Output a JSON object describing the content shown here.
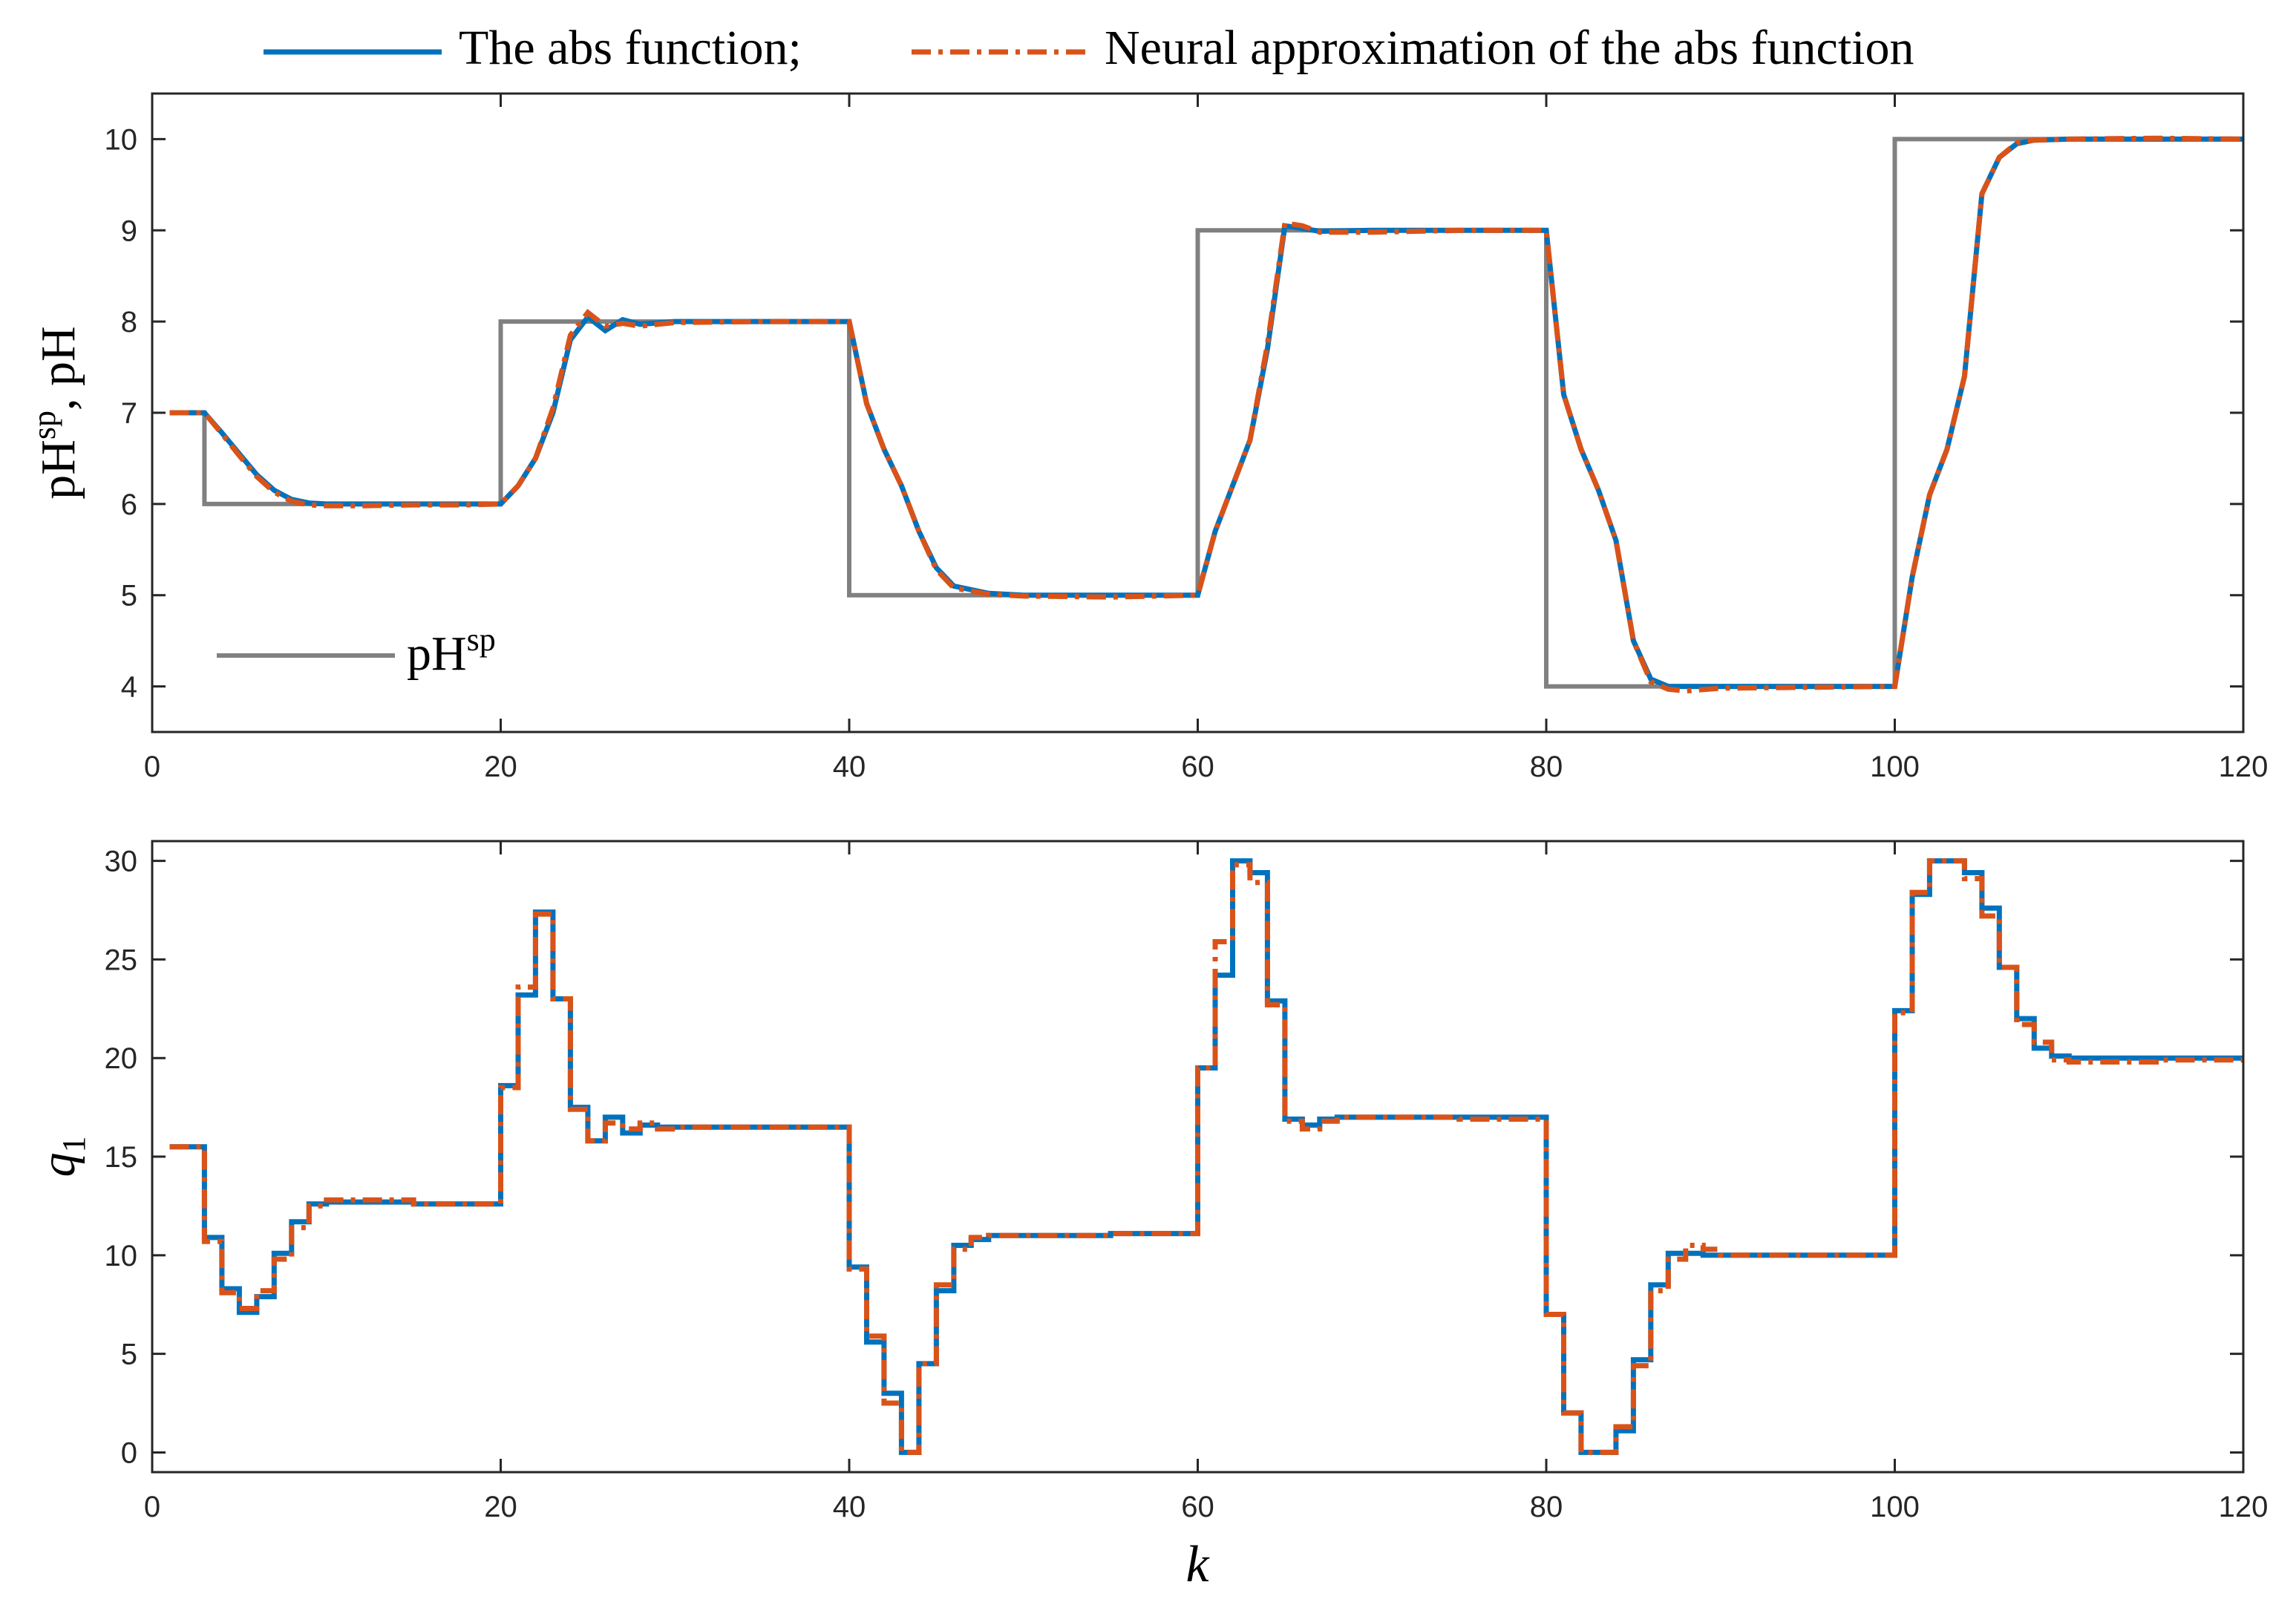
{
  "legend": {
    "entries": [
      {
        "label": "The abs function;",
        "color": "#0072BD",
        "style": "solid"
      },
      {
        "label": "Neural approximation of the abs function",
        "color": "#D95319",
        "style": "dashdot"
      }
    ]
  },
  "chart_data": [
    {
      "type": "line",
      "ylabel_main": "pH",
      "ylabel_sup": "sp",
      "ylabel_rest": ", pH",
      "xlim": [
        0,
        120
      ],
      "ylim": [
        3.5,
        10.5
      ],
      "xticks": [
        0,
        20,
        40,
        60,
        80,
        100,
        120
      ],
      "yticks": [
        4,
        5,
        6,
        7,
        8,
        9,
        10
      ],
      "grid": false,
      "inner_legend": {
        "label_main": "pH",
        "label_sup": "sp",
        "position": "bottom-left",
        "color": "#808080"
      },
      "series": [
        {
          "key": "setpoint",
          "style": "step",
          "color": "#808080",
          "x": [
            1,
            3,
            20,
            40,
            60,
            80,
            100,
            120
          ],
          "y": [
            7,
            6,
            8,
            5,
            9,
            4,
            10,
            10
          ]
        },
        {
          "key": "abs",
          "name": "The abs function;",
          "color": "#0072BD",
          "x": [
            1,
            3,
            4,
            5,
            6,
            7,
            8,
            9,
            10,
            12,
            15,
            18,
            20,
            21,
            22,
            23,
            24,
            25,
            26,
            27,
            28,
            30,
            35,
            40,
            41,
            42,
            43,
            44,
            45,
            46,
            48,
            50,
            55,
            60,
            61,
            62,
            63,
            64,
            65,
            66,
            67,
            70,
            75,
            80,
            81,
            82,
            83,
            84,
            85,
            86,
            87,
            90,
            95,
            100,
            101,
            102,
            103,
            104,
            105,
            106,
            107,
            108,
            110,
            115,
            120
          ],
          "y": [
            7,
            7,
            6.78,
            6.55,
            6.32,
            6.15,
            6.05,
            6.01,
            6,
            6,
            6,
            6,
            6,
            6.2,
            6.5,
            7.0,
            7.8,
            8.05,
            7.9,
            8.02,
            7.97,
            8,
            8,
            8,
            7.1,
            6.6,
            6.2,
            5.7,
            5.3,
            5.1,
            5.02,
            5,
            5,
            5,
            5.7,
            6.2,
            6.7,
            7.7,
            9.05,
            9.02,
            8.99,
            9,
            9,
            9,
            7.2,
            6.6,
            6.15,
            5.6,
            4.5,
            4.08,
            4.0,
            4,
            4,
            4,
            5.2,
            6.1,
            6.6,
            7.4,
            9.4,
            9.8,
            9.95,
            9.99,
            10,
            10,
            10
          ]
        },
        {
          "key": "neural",
          "name": "Neural approximation of the abs function",
          "color": "#D95319",
          "x": [
            1,
            3,
            4,
            5,
            6,
            7,
            8,
            9,
            10,
            12,
            15,
            18,
            20,
            21,
            22,
            23,
            24,
            25,
            26,
            27,
            28,
            30,
            35,
            40,
            41,
            42,
            43,
            44,
            45,
            46,
            48,
            50,
            55,
            60,
            61,
            62,
            63,
            64,
            65,
            66,
            67,
            70,
            75,
            80,
            81,
            82,
            83,
            84,
            85,
            86,
            87,
            88,
            90,
            95,
            100,
            101,
            102,
            103,
            104,
            105,
            106,
            107,
            108,
            110,
            115,
            120
          ],
          "y": [
            7,
            7,
            6.77,
            6.53,
            6.3,
            6.13,
            6.03,
            5.99,
            5.98,
            5.98,
            5.99,
            5.99,
            6,
            6.2,
            6.5,
            7.05,
            7.85,
            8.1,
            7.95,
            7.98,
            7.95,
            7.99,
            8,
            8,
            7.1,
            6.6,
            6.2,
            5.7,
            5.28,
            5.08,
            5.01,
            4.99,
            4.98,
            5,
            5.7,
            6.2,
            6.7,
            7.75,
            9.08,
            9.05,
            8.98,
            8.98,
            9.0,
            9,
            7.2,
            6.6,
            6.15,
            5.6,
            4.5,
            4.05,
            3.97,
            3.95,
            3.98,
            3.99,
            4,
            5.2,
            6.1,
            6.6,
            7.4,
            9.4,
            9.8,
            9.96,
            9.99,
            10,
            10.01,
            10
          ]
        }
      ]
    },
    {
      "type": "line",
      "ylabel": "q",
      "ylabel_sub": "1",
      "xlabel": "k",
      "xlim": [
        0,
        120
      ],
      "ylim": [
        -1,
        31
      ],
      "xticks": [
        0,
        20,
        40,
        60,
        80,
        100,
        120
      ],
      "yticks": [
        0,
        5,
        10,
        15,
        20,
        25,
        30
      ],
      "grid": false,
      "series": [
        {
          "key": "abs",
          "name": "The abs function;",
          "color": "#0072BD",
          "style": "stairs",
          "x": [
            1,
            3,
            4,
            5,
            6,
            7,
            8,
            9,
            10,
            15,
            20,
            21,
            22,
            23,
            24,
            25,
            26,
            27,
            28,
            29,
            30,
            35,
            40,
            41,
            42,
            43,
            44,
            45,
            46,
            47,
            48,
            50,
            55,
            60,
            61,
            62,
            63,
            64,
            65,
            66,
            67,
            68,
            70,
            75,
            80,
            81,
            82,
            83,
            84,
            85,
            86,
            87,
            88,
            89,
            90,
            95,
            100,
            101,
            102,
            103,
            104,
            105,
            106,
            107,
            108,
            109,
            110,
            115,
            120
          ],
          "y": [
            15.5,
            10.9,
            8.3,
            7.1,
            7.9,
            10.1,
            11.7,
            12.6,
            12.7,
            12.6,
            18.6,
            23.2,
            27.4,
            23.0,
            17.5,
            15.8,
            17.0,
            16.2,
            16.6,
            16.5,
            16.5,
            16.5,
            9.4,
            5.6,
            3.0,
            0,
            4.5,
            8.2,
            10.5,
            10.8,
            11.0,
            11.0,
            11.1,
            19.5,
            24.2,
            30.0,
            29.4,
            22.9,
            16.9,
            16.6,
            16.9,
            17.0,
            17.0,
            17.0,
            7.0,
            2.0,
            0,
            0,
            1.1,
            4.7,
            8.5,
            10.1,
            10.1,
            10.0,
            10.0,
            10.0,
            22.4,
            28.3,
            30.0,
            30.0,
            29.4,
            27.6,
            24.6,
            22.0,
            20.5,
            20.1,
            20.0,
            20.0,
            20.0
          ]
        },
        {
          "key": "neural",
          "name": "Neural approximation of the abs function",
          "color": "#D95319",
          "style": "stairs",
          "x": [
            1,
            3,
            4,
            5,
            6,
            7,
            8,
            9,
            10,
            15,
            20,
            21,
            22,
            23,
            24,
            25,
            26,
            27,
            28,
            29,
            30,
            35,
            40,
            41,
            42,
            43,
            44,
            45,
            46,
            47,
            48,
            50,
            55,
            60,
            61,
            62,
            63,
            64,
            65,
            66,
            67,
            68,
            70,
            75,
            80,
            81,
            82,
            83,
            84,
            85,
            86,
            87,
            88,
            89,
            90,
            95,
            100,
            101,
            102,
            103,
            104,
            105,
            106,
            107,
            108,
            109,
            110,
            115,
            120
          ],
          "y": [
            15.5,
            10.7,
            8.1,
            7.3,
            8.2,
            9.8,
            11.4,
            12.5,
            12.8,
            12.6,
            18.5,
            23.6,
            27.3,
            23.0,
            17.4,
            15.8,
            16.7,
            16.4,
            16.7,
            16.4,
            16.5,
            16.5,
            9.3,
            5.9,
            2.5,
            0,
            4.5,
            8.5,
            10.3,
            10.9,
            11.0,
            11.0,
            11.1,
            19.5,
            25.9,
            29.8,
            28.9,
            22.7,
            16.8,
            16.4,
            16.8,
            17.0,
            17.0,
            16.9,
            7.0,
            2.0,
            0,
            0,
            1.3,
            4.4,
            8.2,
            9.8,
            10.5,
            10.3,
            10.0,
            10.0,
            22.3,
            28.4,
            30.0,
            30.0,
            29.1,
            27.2,
            24.6,
            21.7,
            20.8,
            19.9,
            19.8,
            19.9,
            20.0
          ]
        }
      ]
    }
  ]
}
